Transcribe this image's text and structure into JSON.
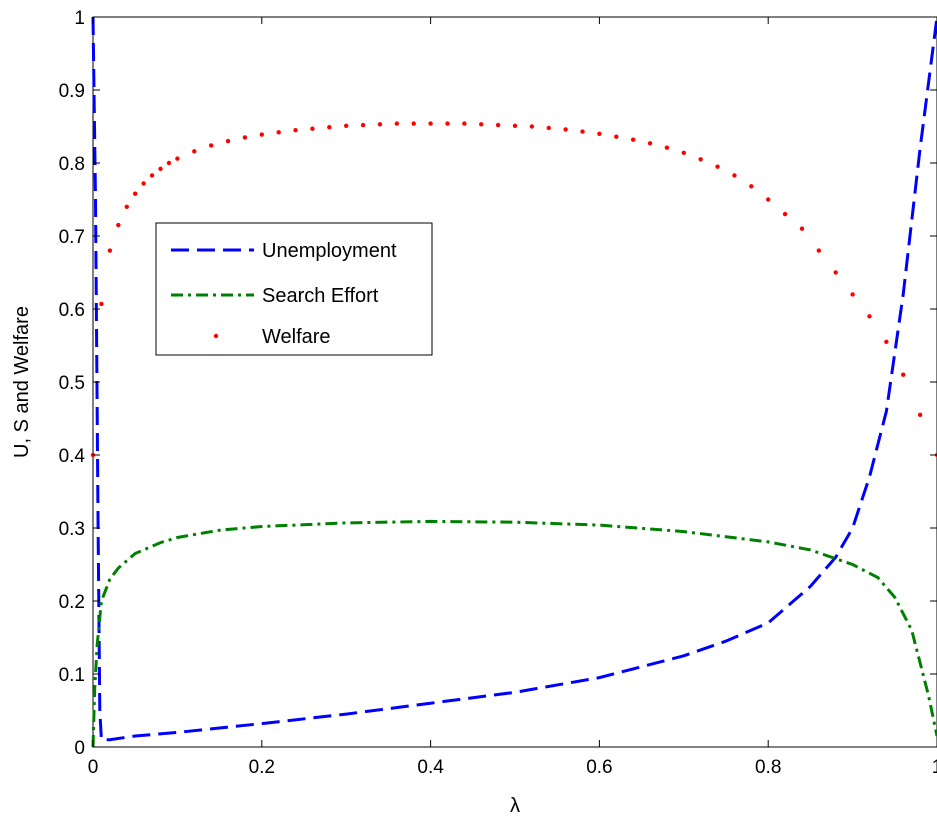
{
  "chart_data": {
    "type": "line",
    "title": "",
    "xlabel": "λ",
    "ylabel": "U, S and Welfare",
    "xlim": [
      0,
      1
    ],
    "ylim": [
      0,
      1
    ],
    "xticks": [
      0,
      0.2,
      0.4,
      0.6,
      0.8,
      1
    ],
    "xtick_labels": [
      "0",
      "0.2",
      "0.4",
      "0.6",
      "0.8",
      "1"
    ],
    "yticks": [
      0,
      0.1,
      0.2,
      0.3,
      0.4,
      0.5,
      0.6,
      0.7,
      0.8,
      0.9,
      1
    ],
    "ytick_labels": [
      "0",
      "0.1",
      "0.2",
      "0.3",
      "0.4",
      "0.5",
      "0.6",
      "0.7",
      "0.8",
      "0.9",
      "1"
    ],
    "grid": false,
    "legend_position": "upper-left",
    "series": [
      {
        "name": "Unemployment",
        "color": "#0000FF",
        "style": "dashed",
        "x": [
          0,
          0.003,
          0.006,
          0.008,
          0.01,
          0.02,
          0.05,
          0.1,
          0.2,
          0.3,
          0.4,
          0.5,
          0.6,
          0.7,
          0.75,
          0.8,
          0.85,
          0.88,
          0.9,
          0.92,
          0.94,
          0.96,
          0.98,
          1.0
        ],
        "y": [
          1.0,
          0.75,
          0.3,
          0.05,
          0.01,
          0.01,
          0.015,
          0.02,
          0.032,
          0.045,
          0.06,
          0.075,
          0.095,
          0.125,
          0.145,
          0.17,
          0.22,
          0.26,
          0.3,
          0.37,
          0.46,
          0.62,
          0.82,
          1.0
        ]
      },
      {
        "name": "Search Effort",
        "color": "#008000",
        "style": "dash-dot",
        "x": [
          0,
          0.002,
          0.005,
          0.01,
          0.02,
          0.03,
          0.05,
          0.08,
          0.1,
          0.15,
          0.2,
          0.3,
          0.4,
          0.5,
          0.6,
          0.7,
          0.8,
          0.85,
          0.88,
          0.9,
          0.93,
          0.95,
          0.97,
          0.99,
          1.0
        ],
        "y": [
          0,
          0.08,
          0.14,
          0.2,
          0.23,
          0.245,
          0.265,
          0.28,
          0.287,
          0.297,
          0.302,
          0.307,
          0.309,
          0.308,
          0.304,
          0.295,
          0.281,
          0.27,
          0.258,
          0.25,
          0.232,
          0.205,
          0.16,
          0.07,
          0.015
        ]
      },
      {
        "name": "Welfare",
        "color": "#FF0000",
        "style": "dotted",
        "x": [
          0,
          0.01,
          0.02,
          0.03,
          0.04,
          0.05,
          0.06,
          0.07,
          0.08,
          0.09,
          0.1,
          0.12,
          0.14,
          0.16,
          0.18,
          0.2,
          0.22,
          0.24,
          0.26,
          0.28,
          0.3,
          0.32,
          0.34,
          0.36,
          0.38,
          0.4,
          0.42,
          0.44,
          0.46,
          0.48,
          0.5,
          0.52,
          0.54,
          0.56,
          0.58,
          0.6,
          0.62,
          0.64,
          0.66,
          0.68,
          0.7,
          0.72,
          0.74,
          0.76,
          0.78,
          0.8,
          0.82,
          0.84,
          0.86,
          0.88,
          0.9,
          0.92,
          0.94,
          0.96,
          0.98,
          1.0
        ],
        "y": [
          0.4,
          0.607,
          0.68,
          0.715,
          0.74,
          0.758,
          0.772,
          0.783,
          0.792,
          0.8,
          0.806,
          0.816,
          0.824,
          0.83,
          0.835,
          0.839,
          0.842,
          0.845,
          0.847,
          0.849,
          0.851,
          0.852,
          0.853,
          0.854,
          0.854,
          0.854,
          0.854,
          0.854,
          0.853,
          0.852,
          0.851,
          0.85,
          0.848,
          0.846,
          0.843,
          0.84,
          0.836,
          0.832,
          0.827,
          0.821,
          0.814,
          0.805,
          0.795,
          0.783,
          0.768,
          0.75,
          0.73,
          0.71,
          0.68,
          0.65,
          0.62,
          0.59,
          0.555,
          0.51,
          0.455,
          0.4
        ]
      }
    ]
  }
}
